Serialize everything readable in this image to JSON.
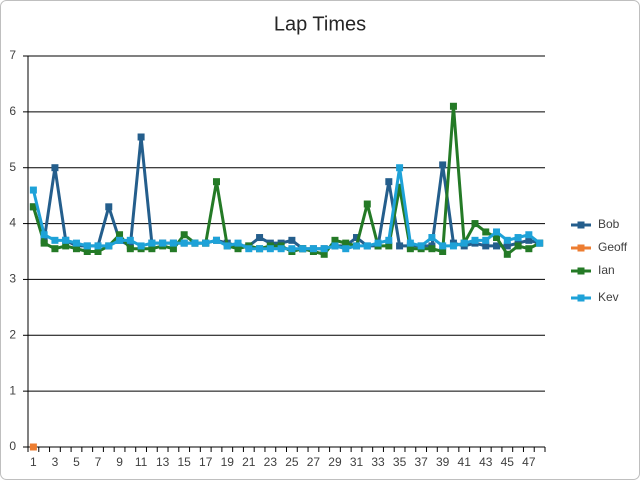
{
  "chart_data": {
    "type": "line",
    "title": "Lap Times",
    "categories": [
      1,
      null,
      3,
      null,
      5,
      null,
      7,
      null,
      9,
      null,
      11,
      null,
      13,
      null,
      15,
      null,
      17,
      null,
      19,
      null,
      21,
      null,
      23,
      null,
      25,
      null,
      27,
      null,
      29,
      null,
      31,
      null,
      33,
      null,
      35,
      null,
      37,
      null,
      39,
      null,
      41,
      null,
      43,
      null,
      45,
      null,
      47,
      null
    ],
    "ylim": [
      0,
      7
    ],
    "yticks": [
      0,
      1,
      2,
      3,
      4,
      5,
      6,
      7
    ],
    "grid": true,
    "legend": "right",
    "series": [
      {
        "name": "Bob",
        "color": "#245e8c",
        "values": [
          4.3,
          3.7,
          5.0,
          3.7,
          3.6,
          3.6,
          3.6,
          4.3,
          3.7,
          3.6,
          5.55,
          3.65,
          3.65,
          3.65,
          3.65,
          3.65,
          3.65,
          3.7,
          3.65,
          3.6,
          3.6,
          3.75,
          3.65,
          3.65,
          3.7,
          3.55,
          3.55,
          3.55,
          3.6,
          3.6,
          3.75,
          3.6,
          3.6,
          4.75,
          3.6,
          3.6,
          3.6,
          3.6,
          5.05,
          3.65,
          3.6,
          3.65,
          3.6,
          3.6,
          3.6,
          3.65,
          3.7,
          3.65
        ]
      },
      {
        "name": "Geoff",
        "color": "#ed7d31",
        "values": [
          0,
          null,
          null,
          null,
          null,
          null,
          null,
          null,
          null,
          null,
          null,
          null,
          null,
          null,
          null,
          null,
          null,
          null,
          null,
          null,
          null,
          null,
          null,
          null,
          null,
          null,
          null,
          null,
          null,
          null,
          null,
          null,
          null,
          null,
          null,
          null,
          null,
          null,
          null,
          null,
          null,
          null,
          null,
          null,
          null,
          null,
          null,
          null
        ]
      },
      {
        "name": "Ian",
        "color": "#247a26",
        "values": [
          4.3,
          3.65,
          3.55,
          3.6,
          3.55,
          3.5,
          3.5,
          3.6,
          3.8,
          3.55,
          3.55,
          3.55,
          3.6,
          3.55,
          3.8,
          3.65,
          3.65,
          4.75,
          3.6,
          3.55,
          3.6,
          3.55,
          3.6,
          3.6,
          3.5,
          3.55,
          3.5,
          3.45,
          3.7,
          3.65,
          3.6,
          4.35,
          3.6,
          3.6,
          4.65,
          3.55,
          3.55,
          3.55,
          3.5,
          6.1,
          3.65,
          4.0,
          3.85,
          3.75,
          3.45,
          3.6,
          3.55,
          3.65
        ]
      },
      {
        "name": "Kev",
        "color": "#1ea2d8",
        "values": [
          4.6,
          3.8,
          3.7,
          3.7,
          3.65,
          3.6,
          3.6,
          3.6,
          3.7,
          3.7,
          3.6,
          3.65,
          3.65,
          3.65,
          3.65,
          3.65,
          3.65,
          3.7,
          3.6,
          3.65,
          3.55,
          3.55,
          3.55,
          3.55,
          3.55,
          3.55,
          3.55,
          3.55,
          3.6,
          3.55,
          3.6,
          3.6,
          3.65,
          3.7,
          5.0,
          3.65,
          3.6,
          3.75,
          3.6,
          3.6,
          3.65,
          3.7,
          3.7,
          3.85,
          3.7,
          3.75,
          3.8,
          3.65
        ]
      }
    ]
  }
}
